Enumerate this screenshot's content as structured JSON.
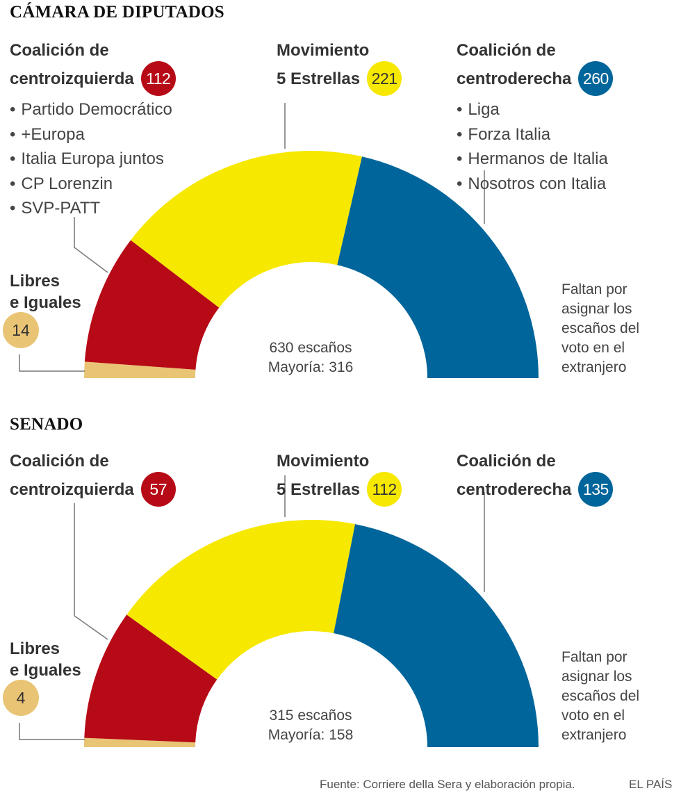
{
  "colors": {
    "red": "#b70a17",
    "yellow": "#f7e800",
    "blue": "#00659a",
    "tan": "#e9c474",
    "line": "#777777"
  },
  "charts": [
    {
      "title": "CÁMARA DE DIPUTADOS",
      "left": {
        "name_line1": "Coalición de",
        "name_line2": "centroizquierda",
        "seats": "112",
        "members": [
          "Partido Democrático",
          "+Europa",
          "Italia Europa juntos",
          "CP Lorenzin",
          "SVP-PATT"
        ]
      },
      "middle": {
        "name_line1": "Movimiento",
        "name_line2": "5 Estrellas",
        "seats": "221"
      },
      "right": {
        "name_line1": "Coalición de",
        "name_line2": "centroderecha",
        "seats": "260",
        "members": [
          "Liga",
          "Forza Italia",
          "Hermanos  de Italia",
          "Nosotros con Italia"
        ]
      },
      "libres": {
        "line1": "Libres",
        "line2": "e Iguales",
        "seats": "14"
      },
      "center": {
        "line1": "630 escaños",
        "line2": "Mayoría: 316"
      },
      "note": [
        "Faltan por",
        "asignar los",
        "escaños del",
        "voto en el",
        "extranjero"
      ]
    },
    {
      "title": "SENADO",
      "left": {
        "name_line1": "Coalición de",
        "name_line2": "centroizquierda",
        "seats": "57"
      },
      "middle": {
        "name_line1": "Movimiento",
        "name_line2": "5 Estrellas",
        "seats": "112"
      },
      "right": {
        "name_line1": "Coalición de",
        "name_line2": "centroderecha",
        "seats": "135"
      },
      "libres": {
        "line1": "Libres",
        "line2": "e Iguales",
        "seats": "4"
      },
      "center": {
        "line1": "315 escaños",
        "line2": "Mayoría: 158"
      },
      "note": [
        "Faltan por",
        "asignar los",
        "escaños del",
        "voto en el",
        "extranjero"
      ]
    }
  ],
  "chart_data": [
    {
      "type": "pie",
      "subtype": "parliament-semicircle",
      "title": "CÁMARA DE DIPUTADOS",
      "total_seats": 630,
      "majority": 316,
      "categories": [
        "Libres e Iguales",
        "Coalición de centroizquierda",
        "Movimiento 5 Estrellas",
        "Coalición de centroderecha"
      ],
      "values": [
        14,
        112,
        221,
        260
      ],
      "colors": [
        "#e9c474",
        "#b70a17",
        "#f7e800",
        "#00659a"
      ]
    },
    {
      "type": "pie",
      "subtype": "parliament-semicircle",
      "title": "SENADO",
      "total_seats": 315,
      "majority": 158,
      "categories": [
        "Libres e Iguales",
        "Coalición de centroizquierda",
        "Movimiento 5 Estrellas",
        "Coalición de centroderecha"
      ],
      "values": [
        4,
        57,
        112,
        135
      ],
      "colors": [
        "#e9c474",
        "#b70a17",
        "#f7e800",
        "#00659a"
      ]
    }
  ],
  "footer": {
    "source": "Fuente: Corriere della Sera y elaboración propia.",
    "brand": "EL PAÍS"
  }
}
